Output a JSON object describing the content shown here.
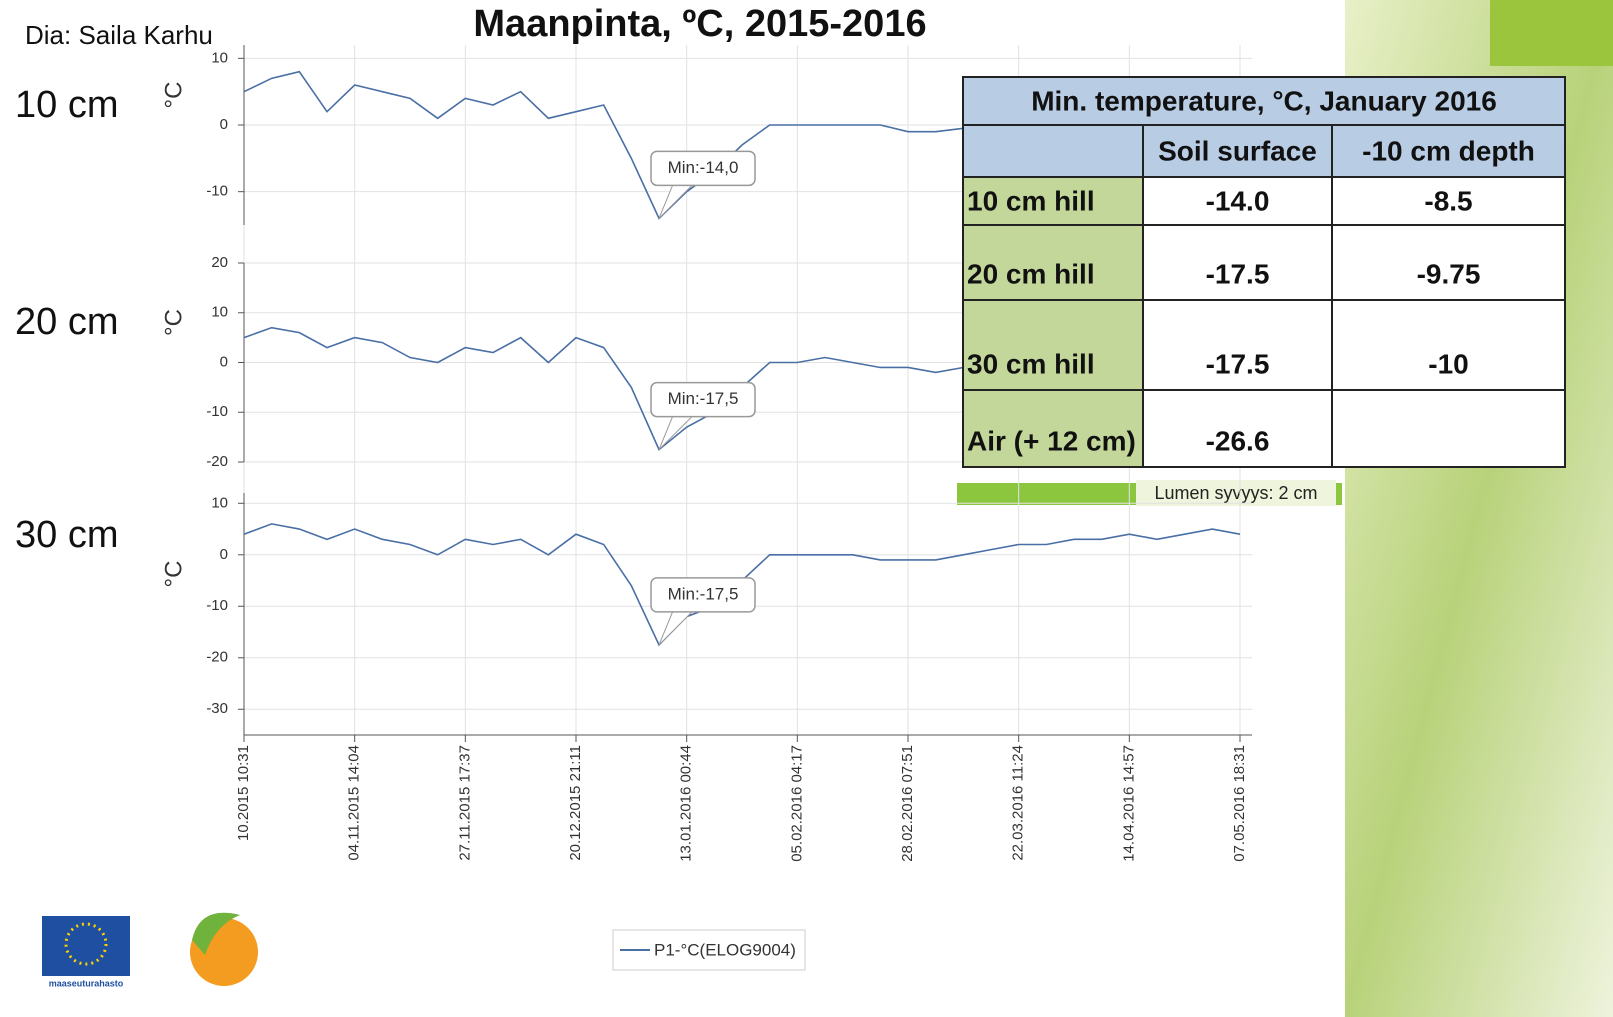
{
  "header": {
    "credit": "Dia: Saila Karhu",
    "title": "Maanpinta, ºC, 2015-2016"
  },
  "chart_data": [
    {
      "type": "line",
      "label": "10 cm",
      "y_label": "°C",
      "annotation": "Min:-14,0",
      "ylim": [
        -15,
        12
      ],
      "yticks": [
        -10,
        0,
        10
      ],
      "series": [
        {
          "color": "#4a6fa5",
          "values": [
            5,
            7,
            8,
            2,
            6,
            5,
            4,
            1,
            4,
            3,
            5,
            1,
            2,
            3,
            -5,
            -14,
            -10,
            -7,
            -3,
            0,
            0,
            0,
            0,
            0,
            -1,
            -1,
            -0.5,
            null,
            null,
            null,
            null,
            null,
            null,
            null,
            null,
            null,
            null
          ]
        }
      ]
    },
    {
      "type": "line",
      "label": "20 cm",
      "y_label": "°C",
      "annotation": "Min:-17,5",
      "ylim": [
        -20,
        20
      ],
      "yticks": [
        -20,
        -10,
        0,
        10,
        20
      ],
      "series": [
        {
          "color": "#4a6fa5",
          "values": [
            5,
            7,
            6,
            3,
            5,
            4,
            1,
            0,
            3,
            2,
            5,
            0,
            5,
            3,
            -5,
            -17.5,
            -13,
            -10,
            -5,
            0,
            0,
            1,
            0,
            -1,
            -1,
            -2,
            -1,
            null,
            null,
            null,
            null,
            null,
            null,
            null,
            null,
            null,
            null
          ]
        }
      ]
    },
    {
      "type": "line",
      "label": "30 cm",
      "y_label": "°C",
      "annotation": "Min:-17,5",
      "ylim": [
        -35,
        12
      ],
      "yticks": [
        -30,
        -20,
        -10,
        0,
        10
      ],
      "categories": [
        "10.2015 10:31",
        null,
        null,
        null,
        "04.11.2015 14:04",
        null,
        null,
        null,
        "27.11.2015 17:37",
        null,
        null,
        null,
        "20.12.2015 21:11",
        null,
        null,
        null,
        "13.01.2016 00:44",
        null,
        null,
        null,
        "05.02.2016 04:17",
        null,
        null,
        null,
        "28.02.2016 07:51",
        null,
        null,
        null,
        "22.03.2016 11:24",
        null,
        null,
        null,
        "14.04.2016 14:57",
        null,
        null,
        null,
        "07.05.2016 18:31"
      ],
      "series": [
        {
          "name": "P1-°C(ELOG9004)",
          "color": "#4a6fa5",
          "values": [
            4,
            6,
            5,
            3,
            5,
            3,
            2,
            0,
            3,
            2,
            3,
            0,
            4,
            2,
            -6,
            -17.5,
            -12,
            -10,
            -5,
            0,
            0,
            0,
            0,
            -1,
            -1,
            -1,
            0,
            1,
            2,
            2,
            3,
            3,
            4,
            3,
            4,
            5,
            4
          ]
        }
      ]
    }
  ],
  "table": {
    "title": "Min. temperature, °C, January 2016",
    "columns": [
      "Soil surface",
      "-10  cm depth"
    ],
    "rows": [
      [
        "10 cm  hill",
        "-14.0",
        "-8.5"
      ],
      [
        "20 cm hill",
        "-17.5",
        "-9.75"
      ],
      [
        "30 cm hill",
        "-17.5",
        "-10"
      ],
      [
        "Air (+ 12 cm)",
        "-26.6"
      ]
    ]
  },
  "note": "Lumen syvyys: 2 cm",
  "logo_text": "maaseuturahasto"
}
